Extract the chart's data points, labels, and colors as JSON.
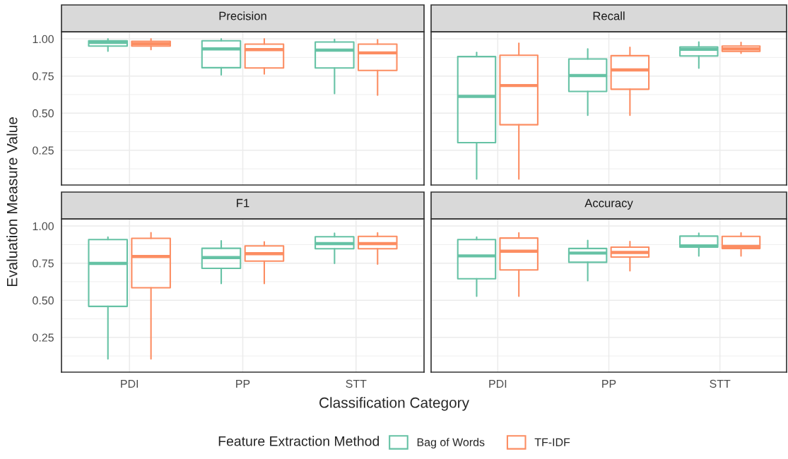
{
  "chart_data": [
    {
      "type": "box",
      "title": "Precision",
      "ylabel": "Evaluation Measure Value",
      "legend": "bottom",
      "legend_title": "Feature Extraction Method",
      "grid": true,
      "tick_labels": "y",
      "categories": [
        "PDI",
        "PP",
        "STT"
      ],
      "ylim": [
        0.016,
        1.048
      ],
      "yticks": [
        {
          "value": 0.25,
          "label": "0.25"
        },
        {
          "value": 0.5,
          "label": "0.50"
        },
        {
          "value": 0.75,
          "label": "0.75"
        },
        {
          "value": 1,
          "label": "1.00"
        }
      ],
      "series": [
        {
          "name": "Bag of Words",
          "color": "#66c2a5",
          "boxes": [
            {
              "low": 0.917,
              "q1": 0.952,
              "median": 0.977,
              "q3": 0.987,
              "high": 1.0
            },
            {
              "low": 0.758,
              "q1": 0.806,
              "median": 0.933,
              "q3": 0.987,
              "high": 1.0
            },
            {
              "low": 0.632,
              "q1": 0.804,
              "median": 0.924,
              "q3": 0.979,
              "high": 0.997
            }
          ]
        },
        {
          "name": "TF-IDF",
          "color": "#fc8d62",
          "boxes": [
            {
              "low": 0.928,
              "q1": 0.952,
              "median": 0.968,
              "q3": 0.984,
              "high": 1.0
            },
            {
              "low": 0.764,
              "q1": 0.804,
              "median": 0.928,
              "q3": 0.965,
              "high": 1.0
            },
            {
              "low": 0.621,
              "q1": 0.788,
              "median": 0.906,
              "q3": 0.965,
              "high": 0.994
            }
          ]
        }
      ]
    },
    {
      "type": "box",
      "title": "Recall",
      "grid": true,
      "tick_labels": false,
      "categories": [
        "PDI",
        "PP",
        "STT"
      ],
      "ylim": [
        0.016,
        1.048
      ],
      "yticks": [
        {
          "value": 0.25,
          "label": "0.25"
        },
        {
          "value": 0.5,
          "label": "0.50"
        },
        {
          "value": 0.75,
          "label": "0.75"
        },
        {
          "value": 1,
          "label": "1.00"
        }
      ],
      "series": [
        {
          "name": "Bag of Words",
          "color": "#66c2a5",
          "boxes": [
            {
              "low": 0.057,
              "q1": 0.301,
              "median": 0.613,
              "q3": 0.881,
              "high": 0.909
            },
            {
              "low": 0.486,
              "q1": 0.646,
              "median": 0.753,
              "q3": 0.865,
              "high": 0.932
            },
            {
              "low": 0.803,
              "q1": 0.885,
              "median": 0.93,
              "q3": 0.946,
              "high": 0.979
            }
          ]
        },
        {
          "name": "TF-IDF",
          "color": "#fc8d62",
          "boxes": [
            {
              "low": 0.057,
              "q1": 0.422,
              "median": 0.686,
              "q3": 0.89,
              "high": 0.971
            },
            {
              "low": 0.486,
              "q1": 0.661,
              "median": 0.791,
              "q3": 0.887,
              "high": 0.943
            },
            {
              "low": 0.903,
              "q1": 0.916,
              "median": 0.933,
              "q3": 0.952,
              "high": 0.976
            }
          ]
        }
      ]
    },
    {
      "type": "box",
      "title": "F1",
      "xlabel": "Classification Category",
      "grid": true,
      "categories": [
        "PDI",
        "PP",
        "STT"
      ],
      "ylim": [
        0.016,
        1.048
      ],
      "yticks": [
        {
          "value": 0.25,
          "label": "0.25"
        },
        {
          "value": 0.5,
          "label": "0.50"
        },
        {
          "value": 0.75,
          "label": "0.75"
        },
        {
          "value": 1,
          "label": "1.00"
        }
      ],
      "series": [
        {
          "name": "Bag of Words",
          "color": "#66c2a5",
          "boxes": [
            {
              "low": 0.105,
              "q1": 0.459,
              "median": 0.748,
              "q3": 0.909,
              "high": 0.925
            },
            {
              "low": 0.613,
              "q1": 0.715,
              "median": 0.788,
              "q3": 0.85,
              "high": 0.9
            },
            {
              "low": 0.748,
              "q1": 0.847,
              "median": 0.882,
              "q3": 0.928,
              "high": 0.951
            }
          ]
        },
        {
          "name": "TF-IDF",
          "color": "#fc8d62",
          "boxes": [
            {
              "low": 0.105,
              "q1": 0.584,
              "median": 0.795,
              "q3": 0.917,
              "high": 0.955
            },
            {
              "low": 0.613,
              "q1": 0.764,
              "median": 0.814,
              "q3": 0.866,
              "high": 0.893
            },
            {
              "low": 0.744,
              "q1": 0.847,
              "median": 0.882,
              "q3": 0.93,
              "high": 0.954
            }
          ]
        }
      ]
    },
    {
      "type": "box",
      "title": "Accuracy",
      "grid": true,
      "tick_labels": "x",
      "categories": [
        "PDI",
        "PP",
        "STT"
      ],
      "ylim": [
        0.016,
        1.048
      ],
      "yticks": [
        {
          "value": 0.25,
          "label": "0.25"
        },
        {
          "value": 0.5,
          "label": "0.50"
        },
        {
          "value": 0.75,
          "label": "0.75"
        },
        {
          "value": 1,
          "label": "1.00"
        }
      ],
      "series": [
        {
          "name": "Bag of Words",
          "color": "#66c2a5",
          "boxes": [
            {
              "low": 0.527,
              "q1": 0.645,
              "median": 0.799,
              "q3": 0.909,
              "high": 0.925
            },
            {
              "low": 0.632,
              "q1": 0.756,
              "median": 0.818,
              "q3": 0.849,
              "high": 0.903
            },
            {
              "low": 0.798,
              "q1": 0.858,
              "median": 0.866,
              "q3": 0.932,
              "high": 0.951
            }
          ]
        },
        {
          "name": "TF-IDF",
          "color": "#fc8d62",
          "boxes": [
            {
              "low": 0.527,
              "q1": 0.704,
              "median": 0.83,
              "q3": 0.919,
              "high": 0.954
            },
            {
              "low": 0.699,
              "q1": 0.791,
              "median": 0.822,
              "q3": 0.858,
              "high": 0.896
            },
            {
              "low": 0.798,
              "q1": 0.849,
              "median": 0.863,
              "q3": 0.93,
              "high": 0.954
            }
          ]
        }
      ]
    }
  ]
}
